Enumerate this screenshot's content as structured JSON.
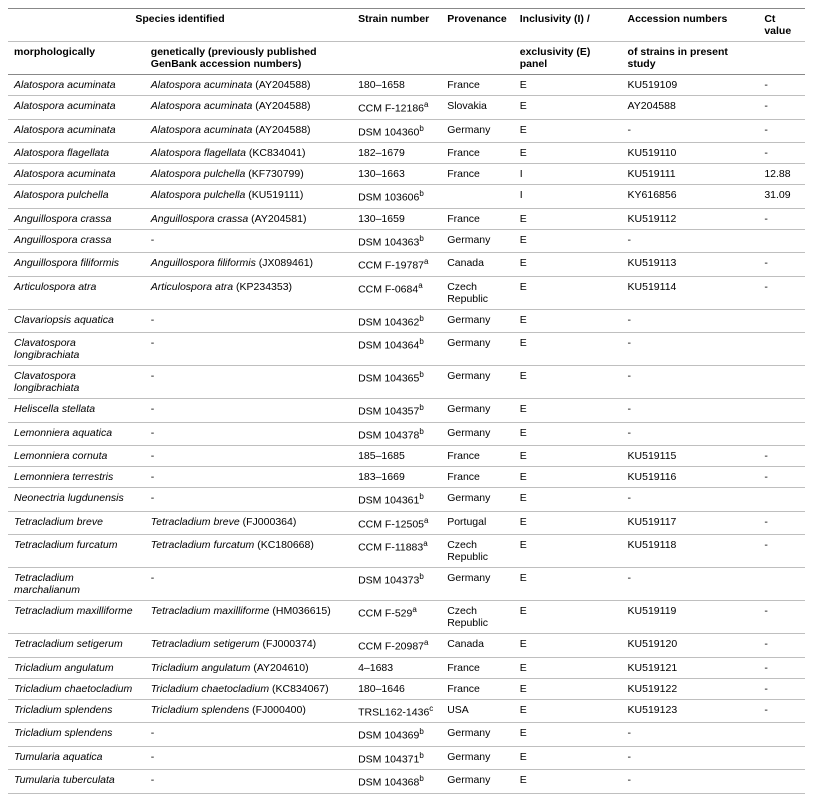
{
  "header": {
    "top": {
      "species": "Species identified",
      "strain": "Strain number",
      "prov": "Provenance",
      "panel": "Inclusivity (I) /",
      "acc": "Accession numbers",
      "ct": "Ct value"
    },
    "sub": {
      "morph": "morphologically",
      "gen": "genetically (previously published GenBank accession numbers)",
      "panel": "exclusivity (E) panel",
      "acc": "of strains in present study"
    }
  },
  "rows": [
    {
      "morph": "Alatospora acuminata",
      "gen": "Alatospora acuminata",
      "genAcc": "(AY204588)",
      "strain": "180–1658",
      "sup": "",
      "prov": "France",
      "panel": "E",
      "acc": "KU519109",
      "ct": "-"
    },
    {
      "morph": "Alatospora acuminata",
      "gen": "Alatospora acuminata",
      "genAcc": "(AY204588)",
      "strain": "CCM F-12186",
      "sup": "a",
      "prov": "Slovakia",
      "panel": "E",
      "acc": "AY204588",
      "ct": "-"
    },
    {
      "morph": "Alatospora acuminata",
      "gen": "Alatospora acuminata",
      "genAcc": "(AY204588)",
      "strain": "DSM 104360",
      "sup": "b",
      "prov": "Germany",
      "panel": "E",
      "acc": "-",
      "ct": "-"
    },
    {
      "morph": "Alatospora flagellata",
      "gen": "Alatospora flagellata",
      "genAcc": "(KC834041)",
      "strain": "182–1679",
      "sup": "",
      "prov": "France",
      "panel": "E",
      "acc": "KU519110",
      "ct": "-"
    },
    {
      "morph": "Alatospora acuminata",
      "gen": "Alatospora pulchella",
      "genAcc": "(KF730799)",
      "strain": "130–1663",
      "sup": "",
      "prov": "France",
      "panel": "I",
      "acc": "KU519111",
      "ct": "12.88"
    },
    {
      "morph": "Alatospora pulchella",
      "gen": "Alatospora pulchella",
      "genAcc": "(KU519111)",
      "strain": "DSM 103606",
      "sup": "b",
      "prov": "",
      "panel": "I",
      "acc": "KY616856",
      "ct": "31.09"
    },
    {
      "morph": "Anguillospora crassa",
      "gen": "Anguillospora crassa",
      "genAcc": "(AY204581)",
      "strain": "130–1659",
      "sup": "",
      "prov": "France",
      "panel": "E",
      "acc": "KU519112",
      "ct": "-"
    },
    {
      "morph": "Anguillospora crassa",
      "gen": "-",
      "genAcc": "",
      "strain": "DSM 104363",
      "sup": "b",
      "prov": "Germany",
      "panel": "E",
      "acc": "-",
      "ct": ""
    },
    {
      "morph": "Anguillospora filiformis",
      "gen": "Anguillospora filiformis",
      "genAcc": "(JX089461)",
      "strain": "CCM F-19787",
      "sup": "a",
      "prov": "Canada",
      "panel": "E",
      "acc": "KU519113",
      "ct": "-"
    },
    {
      "morph": "Articulospora atra",
      "gen": "Articulospora atra",
      "genAcc": "(KP234353)",
      "strain": "CCM F-0684",
      "sup": "a",
      "prov": "Czech Republic",
      "panel": "E",
      "acc": "KU519114",
      "ct": "-"
    },
    {
      "morph": "Clavariopsis aquatica",
      "gen": "-",
      "genAcc": "",
      "strain": "DSM 104362",
      "sup": "b",
      "prov": "Germany",
      "panel": "E",
      "acc": "-",
      "ct": ""
    },
    {
      "morph": "Clavatospora longibrachiata",
      "gen": "-",
      "genAcc": "",
      "strain": "DSM 104364",
      "sup": "b",
      "prov": "Germany",
      "panel": "E",
      "acc": "-",
      "ct": ""
    },
    {
      "morph": "Clavatospora longibrachiata",
      "gen": "-",
      "genAcc": "",
      "strain": "DSM 104365",
      "sup": "b",
      "prov": "Germany",
      "panel": "E",
      "acc": "-",
      "ct": ""
    },
    {
      "morph": "Heliscella stellata",
      "gen": "-",
      "genAcc": "",
      "strain": "DSM 104357",
      "sup": "b",
      "prov": "Germany",
      "panel": "E",
      "acc": "-",
      "ct": ""
    },
    {
      "morph": "Lemonniera aquatica",
      "gen": "-",
      "genAcc": "",
      "strain": "DSM 104378",
      "sup": "b",
      "prov": "Germany",
      "panel": "E",
      "acc": "-",
      "ct": ""
    },
    {
      "morph": "Lemonniera cornuta",
      "gen": "-",
      "genAcc": "",
      "strain": "185–1685",
      "sup": "",
      "prov": "France",
      "panel": "E",
      "acc": "KU519115",
      "ct": "-"
    },
    {
      "morph": "Lemonniera terrestris",
      "gen": "-",
      "genAcc": "",
      "strain": "183–1669",
      "sup": "",
      "prov": "France",
      "panel": "E",
      "acc": "KU519116",
      "ct": "-"
    },
    {
      "morph": "Neonectria lugdunensis",
      "gen": "-",
      "genAcc": "",
      "strain": "DSM 104361",
      "sup": "b",
      "prov": "Germany",
      "panel": "E",
      "acc": "-",
      "ct": ""
    },
    {
      "morph": "Tetracladium breve",
      "gen": "Tetracladium breve",
      "genAcc": "(FJ000364)",
      "strain": "CCM F-12505",
      "sup": "a",
      "prov": "Portugal",
      "panel": "E",
      "acc": "KU519117",
      "ct": "-"
    },
    {
      "morph": "Tetracladium furcatum",
      "gen": "Tetracladium furcatum",
      "genAcc": "(KC180668)",
      "strain": "CCM F-11883",
      "sup": "a",
      "prov": "Czech Republic",
      "panel": "E",
      "acc": "KU519118",
      "ct": "-"
    },
    {
      "morph": "Tetracladium marchalianum",
      "gen": "-",
      "genAcc": "",
      "strain": "DSM 104373",
      "sup": "b",
      "prov": "Germany",
      "panel": "E",
      "acc": "-",
      "ct": ""
    },
    {
      "morph": "Tetracladium maxilliforme",
      "gen": "Tetracladium maxilliforme",
      "genAcc": "(HM036615)",
      "strain": "CCM F-529",
      "sup": "a",
      "prov": "Czech Republic",
      "panel": "E",
      "acc": "KU519119",
      "ct": "-"
    },
    {
      "morph": "Tetracladium setigerum",
      "gen": "Tetracladium setigerum",
      "genAcc": "(FJ000374)",
      "strain": "CCM F-20987",
      "sup": "a",
      "prov": "Canada",
      "panel": "E",
      "acc": "KU519120",
      "ct": "-"
    },
    {
      "morph": "Tricladium angulatum",
      "gen": "Tricladium angulatum",
      "genAcc": "(AY204610)",
      "strain": "4–1683",
      "sup": "",
      "prov": "France",
      "panel": "E",
      "acc": "KU519121",
      "ct": "-"
    },
    {
      "morph": "Tricladium chaetocladium",
      "gen": "Tricladium chaetocladium",
      "genAcc": "(KC834067)",
      "strain": "180–1646",
      "sup": "",
      "prov": "France",
      "panel": "E",
      "acc": "KU519122",
      "ct": "-"
    },
    {
      "morph": "Tricladium splendens",
      "gen": "Tricladium splendens",
      "genAcc": "(FJ000400)",
      "strain": "TRSL162-1436",
      "sup": "c",
      "prov": "USA",
      "panel": "E",
      "acc": "KU519123",
      "ct": "-"
    },
    {
      "morph": "Tricladium splendens",
      "gen": "-",
      "genAcc": "",
      "strain": "DSM 104369",
      "sup": "b",
      "prov": "Germany",
      "panel": "E",
      "acc": "-",
      "ct": ""
    },
    {
      "morph": "Tumularia aquatica",
      "gen": "-",
      "genAcc": "",
      "strain": "DSM 104371",
      "sup": "b",
      "prov": "Germany",
      "panel": "E",
      "acc": "-",
      "ct": ""
    },
    {
      "morph": "Tumularia tuberculata",
      "gen": "-",
      "genAcc": "",
      "strain": "DSM 104368",
      "sup": "b",
      "prov": "Germany",
      "panel": "E",
      "acc": "-",
      "ct": ""
    }
  ]
}
